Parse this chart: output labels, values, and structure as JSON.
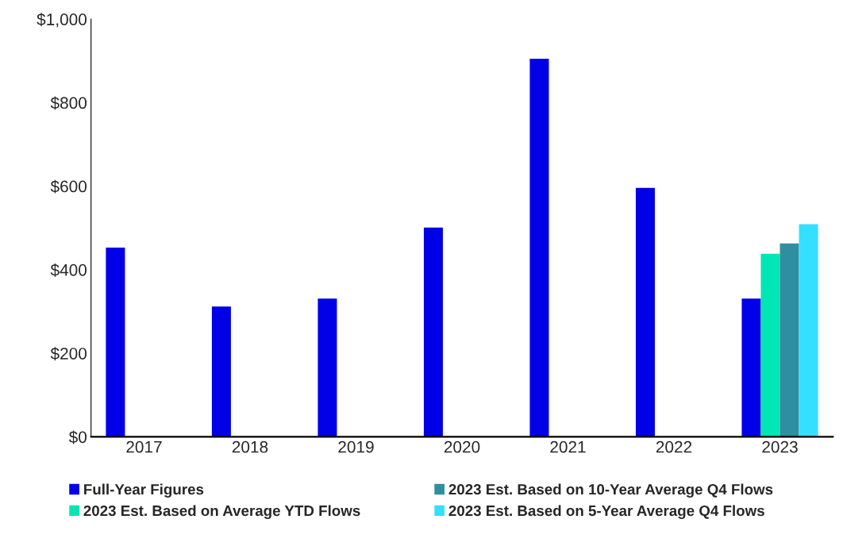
{
  "chart_data": {
    "type": "bar",
    "categories": [
      "2017",
      "2018",
      "2019",
      "2020",
      "2021",
      "2022",
      "2023"
    ],
    "series": [
      {
        "name": "Full-Year Figures",
        "color": "#0000e6",
        "values": [
          453,
          312,
          331,
          501,
          905,
          596,
          331
        ]
      },
      {
        "name": "2023 Est. Based on Average YTD Flows",
        "color": "#00e6b4",
        "values": [
          null,
          null,
          null,
          null,
          null,
          null,
          438
        ]
      },
      {
        "name": "2023 Est. Based on 10-Year Average Q4 Flows",
        "color": "#2e8fa0",
        "values": [
          null,
          null,
          null,
          null,
          null,
          null,
          463
        ]
      },
      {
        "name": "2023 Est. Based on 5-Year Average Q4 Flows",
        "color": "#33e0ff",
        "values": [
          null,
          null,
          null,
          null,
          null,
          null,
          509
        ]
      }
    ],
    "ylim": [
      0,
      1000
    ],
    "yticks": [
      {
        "value": 0,
        "label": "$0"
      },
      {
        "value": 200,
        "label": "$200"
      },
      {
        "value": 400,
        "label": "$400"
      },
      {
        "value": 600,
        "label": "$600"
      },
      {
        "value": 800,
        "label": "$800"
      },
      {
        "value": 1000,
        "label": "$1,000"
      }
    ],
    "grid": false,
    "legend": "bottom"
  }
}
